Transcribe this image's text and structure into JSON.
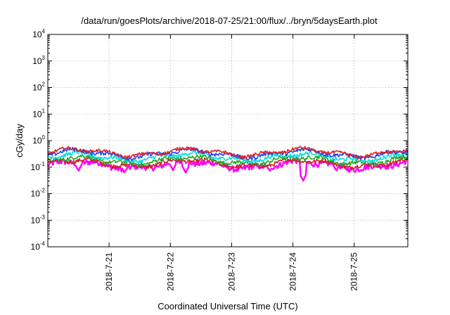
{
  "chart_data": {
    "type": "line",
    "title": "/data/run/goesPlots/archive/2018-07-25/21:00/flux/../bryn/5daysEarth.plot",
    "xlabel": "Coordinated Universal Time (UTC)",
    "ylabel": "cGy/day",
    "yscale": "log",
    "ylim": [
      0.0001,
      10000
    ],
    "yticks": [
      {
        "base": "10",
        "exp": "-4",
        "value": 0.0001
      },
      {
        "base": "10",
        "exp": "-3",
        "value": 0.001
      },
      {
        "base": "10",
        "exp": "-2",
        "value": 0.01
      },
      {
        "base": "10",
        "exp": "-1",
        "value": 0.1
      },
      {
        "base": "10",
        "exp": "0",
        "value": 1
      },
      {
        "base": "10",
        "exp": "1",
        "value": 10
      },
      {
        "base": "10",
        "exp": "2",
        "value": 100
      },
      {
        "base": "10",
        "exp": "3",
        "value": 1000
      },
      {
        "base": "10",
        "exp": "4",
        "value": 10000
      }
    ],
    "xlim": [
      "2018-07-20 00:00",
      "2018-07-25 21:00"
    ],
    "xticks": [
      "2018-7-21",
      "2018-7-22",
      "2018-7-23",
      "2018-7-24",
      "2018-7-25"
    ],
    "grid": true,
    "series": [
      {
        "color": "#ff00ff",
        "base": 0.12,
        "noise": 0.22,
        "dips": [
          [
            "2018-07-20 12:00",
            0.07
          ],
          [
            "2018-07-21 06:00",
            0.06
          ],
          [
            "2018-07-22 01:00",
            0.075
          ],
          [
            "2018-07-22 06:00",
            0.06
          ],
          [
            "2018-07-23 15:00",
            0.07
          ],
          [
            "2018-07-24 04:00",
            0.03
          ],
          [
            "2018-07-24 17:00",
            0.07
          ],
          [
            "2018-07-25 02:00",
            0.065
          ]
        ]
      },
      {
        "color": "#cc2222",
        "base": 0.14,
        "noise": 0.15
      },
      {
        "color": "#22aa22",
        "base": 0.18,
        "noise": 0.15
      },
      {
        "color": "#00dddd",
        "base": 0.24,
        "noise": 0.15
      },
      {
        "color": "#2244ff",
        "base": 0.32,
        "noise": 0.15
      },
      {
        "color": "#dd2222",
        "base": 0.36,
        "noise": 0.12
      }
    ]
  }
}
